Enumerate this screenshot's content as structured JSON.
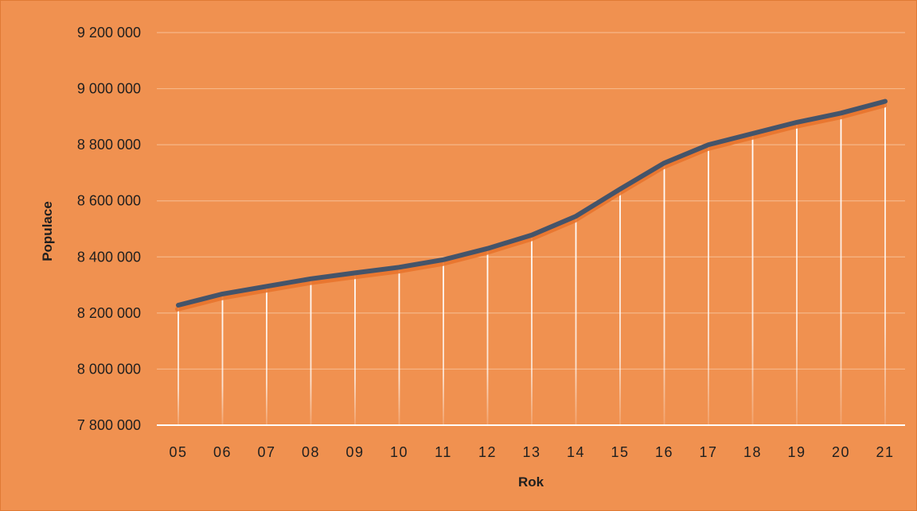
{
  "chart_data": {
    "type": "line",
    "title": "",
    "xlabel": "Rok",
    "ylabel": "Populace",
    "categories": [
      "05",
      "06",
      "07",
      "08",
      "09",
      "10",
      "11",
      "12",
      "13",
      "14",
      "15",
      "16",
      "17",
      "18",
      "19",
      "20",
      "21"
    ],
    "series": [
      {
        "values": [
          8228000,
          8268000,
          8295000,
          8322000,
          8343000,
          8363000,
          8390000,
          8430000,
          8478000,
          8545000,
          8642000,
          8735000,
          8800000,
          8840000,
          8880000,
          8913000,
          8955000
        ]
      }
    ],
    "ylim": [
      7800000,
      9200000
    ],
    "yticks": [
      7800000,
      8000000,
      8200000,
      8400000,
      8600000,
      8800000,
      9000000,
      9200000
    ],
    "ytick_labels": [
      "7 800 000",
      "8 000 000",
      "8 200 000",
      "8 400 000",
      "8 600 000",
      "8 800 000",
      "9 000 000",
      "9 200 000"
    ],
    "grid": true,
    "drop_lines": true,
    "legend": "none",
    "colors": {
      "background": "#f09150",
      "line": "#44546a",
      "line_shadow": "#e8742c",
      "gridline": "#f6b788",
      "axis": "#ffffff",
      "drop_line": "#ffffff"
    }
  }
}
